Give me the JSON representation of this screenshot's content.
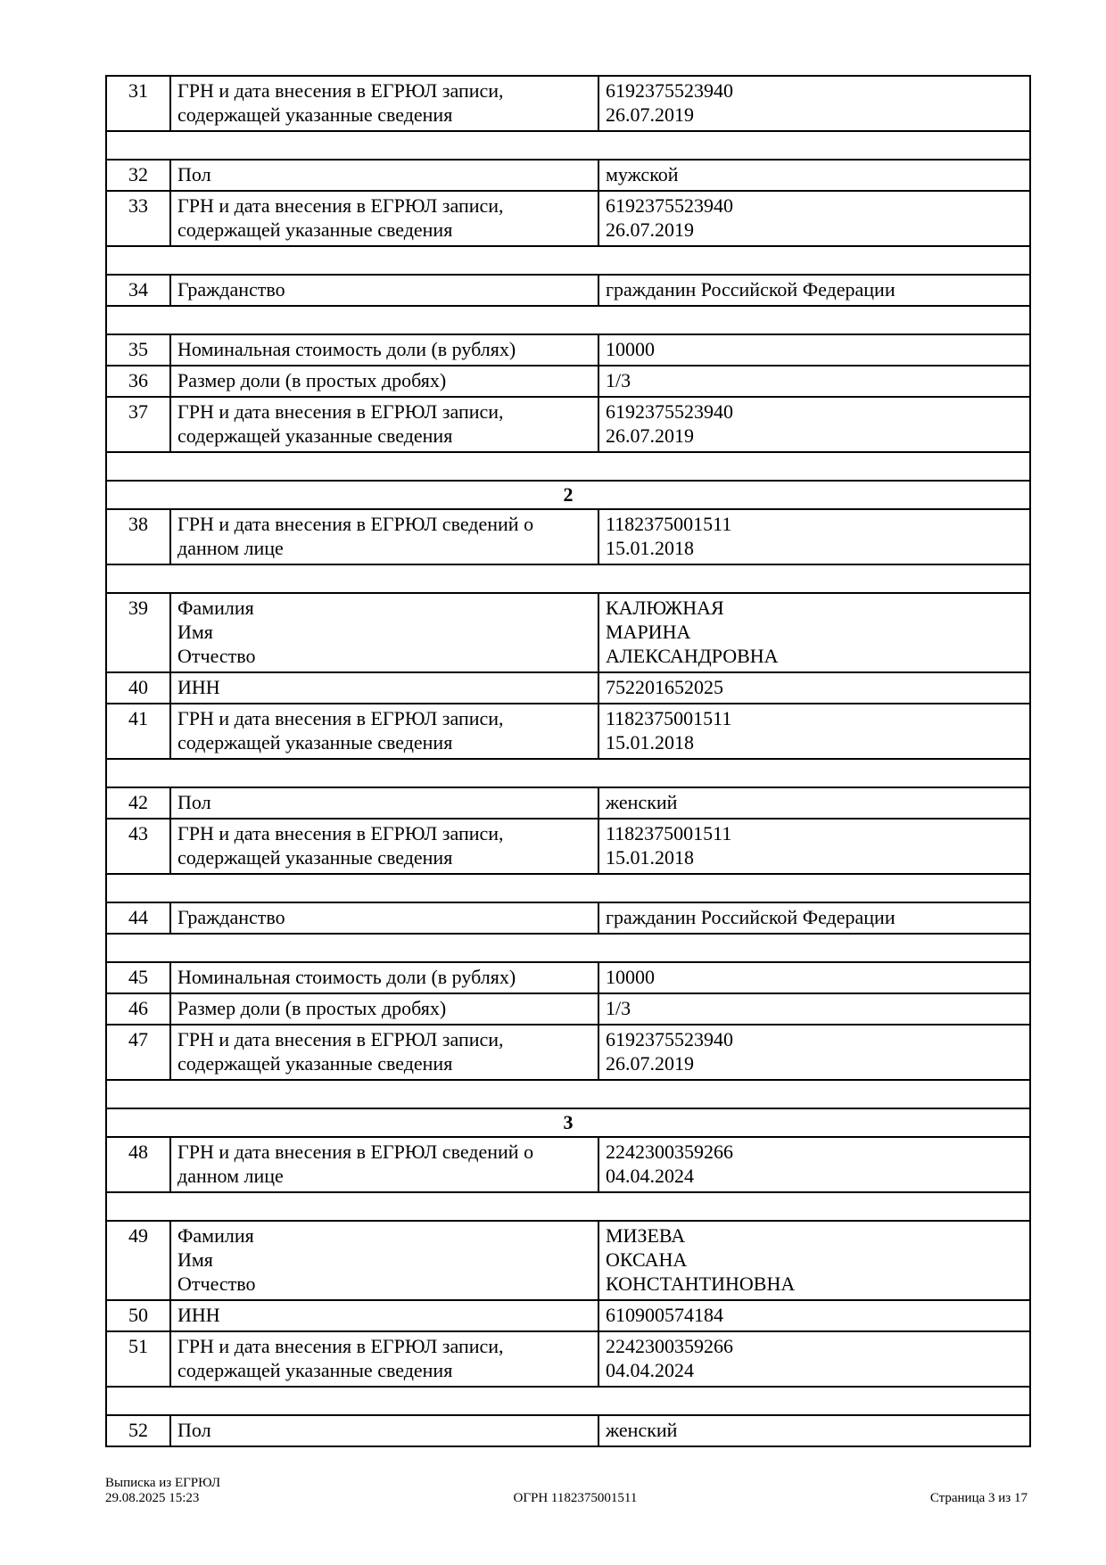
{
  "page": {
    "background_color": "#ffffff",
    "text_color": "#000000",
    "border_color": "#000000"
  },
  "table": {
    "rows": [
      {
        "type": "data",
        "num": "31",
        "label": [
          "ГРН и дата внесения в ЕГРЮЛ записи,",
          "содержащей указанные сведения"
        ],
        "value": [
          "6192375523940",
          "26.07.2019"
        ]
      },
      {
        "type": "spacer"
      },
      {
        "type": "data",
        "num": "32",
        "label": [
          "Пол"
        ],
        "value": [
          "мужской"
        ]
      },
      {
        "type": "data",
        "num": "33",
        "label": [
          "ГРН и дата внесения в ЕГРЮЛ записи,",
          "содержащей указанные сведения"
        ],
        "value": [
          "6192375523940",
          "26.07.2019"
        ]
      },
      {
        "type": "spacer"
      },
      {
        "type": "data",
        "num": "34",
        "label": [
          "Гражданство"
        ],
        "value": [
          "гражданин Российской Федерации"
        ]
      },
      {
        "type": "spacer"
      },
      {
        "type": "data",
        "num": "35",
        "label": [
          "Номинальная стоимость доли (в рублях)"
        ],
        "value": [
          "10000"
        ]
      },
      {
        "type": "data",
        "num": "36",
        "label": [
          "Размер доли (в простых дробях)"
        ],
        "value": [
          "1/3"
        ]
      },
      {
        "type": "data",
        "num": "37",
        "label": [
          "ГРН и дата внесения в ЕГРЮЛ записи,",
          "содержащей указанные сведения"
        ],
        "value": [
          "6192375523940",
          "26.07.2019"
        ]
      },
      {
        "type": "spacer"
      },
      {
        "type": "section",
        "title": "2"
      },
      {
        "type": "data",
        "num": "38",
        "label": [
          "ГРН и дата внесения в ЕГРЮЛ сведений о",
          "данном лице"
        ],
        "value": [
          "1182375001511",
          "15.01.2018"
        ]
      },
      {
        "type": "spacer"
      },
      {
        "type": "data",
        "num": "39",
        "label": [
          "Фамилия",
          "Имя",
          "Отчество"
        ],
        "value": [
          "КАЛЮЖНАЯ",
          "МАРИНА",
          "АЛЕКСАНДРОВНА"
        ]
      },
      {
        "type": "data",
        "num": "40",
        "label": [
          "ИНН"
        ],
        "value": [
          "752201652025"
        ]
      },
      {
        "type": "data",
        "num": "41",
        "label": [
          "ГРН и дата внесения в ЕГРЮЛ записи,",
          "содержащей указанные сведения"
        ],
        "value": [
          "1182375001511",
          "15.01.2018"
        ]
      },
      {
        "type": "spacer"
      },
      {
        "type": "data",
        "num": "42",
        "label": [
          "Пол"
        ],
        "value": [
          "женский"
        ]
      },
      {
        "type": "data",
        "num": "43",
        "label": [
          "ГРН и дата внесения в ЕГРЮЛ записи,",
          "содержащей указанные сведения"
        ],
        "value": [
          "1182375001511",
          "15.01.2018"
        ]
      },
      {
        "type": "spacer"
      },
      {
        "type": "data",
        "num": "44",
        "label": [
          "Гражданство"
        ],
        "value": [
          "гражданин Российской Федерации"
        ]
      },
      {
        "type": "spacer"
      },
      {
        "type": "data",
        "num": "45",
        "label": [
          "Номинальная стоимость доли (в рублях)"
        ],
        "value": [
          "10000"
        ]
      },
      {
        "type": "data",
        "num": "46",
        "label": [
          "Размер доли (в простых дробях)"
        ],
        "value": [
          "1/3"
        ]
      },
      {
        "type": "data",
        "num": "47",
        "label": [
          "ГРН и дата внесения в ЕГРЮЛ записи,",
          "содержащей указанные сведения"
        ],
        "value": [
          "6192375523940",
          "26.07.2019"
        ]
      },
      {
        "type": "spacer"
      },
      {
        "type": "section",
        "title": "3"
      },
      {
        "type": "data",
        "num": "48",
        "label": [
          "ГРН и дата внесения в ЕГРЮЛ сведений о",
          "данном лице"
        ],
        "value": [
          "2242300359266",
          "04.04.2024"
        ]
      },
      {
        "type": "spacer"
      },
      {
        "type": "data",
        "num": "49",
        "label": [
          "Фамилия",
          "Имя",
          "Отчество"
        ],
        "value": [
          "МИЗЕВА",
          "ОКСАНА",
          "КОНСТАНТИНОВНА"
        ]
      },
      {
        "type": "data",
        "num": "50",
        "label": [
          "ИНН"
        ],
        "value": [
          "610900574184"
        ]
      },
      {
        "type": "data",
        "num": "51",
        "label": [
          "ГРН и дата внесения в ЕГРЮЛ записи,",
          "содержащей указанные сведения"
        ],
        "value": [
          "2242300359266",
          "04.04.2024"
        ]
      },
      {
        "type": "spacer"
      },
      {
        "type": "data",
        "num": "52",
        "label": [
          "Пол"
        ],
        "value": [
          "женский"
        ]
      }
    ]
  },
  "footer": {
    "doc_title": "Выписка из ЕГРЮЛ",
    "datetime": "29.08.2025 15:23",
    "ogrn": "ОГРН 1182375001511",
    "page_info": "Страница 3 из 17"
  }
}
